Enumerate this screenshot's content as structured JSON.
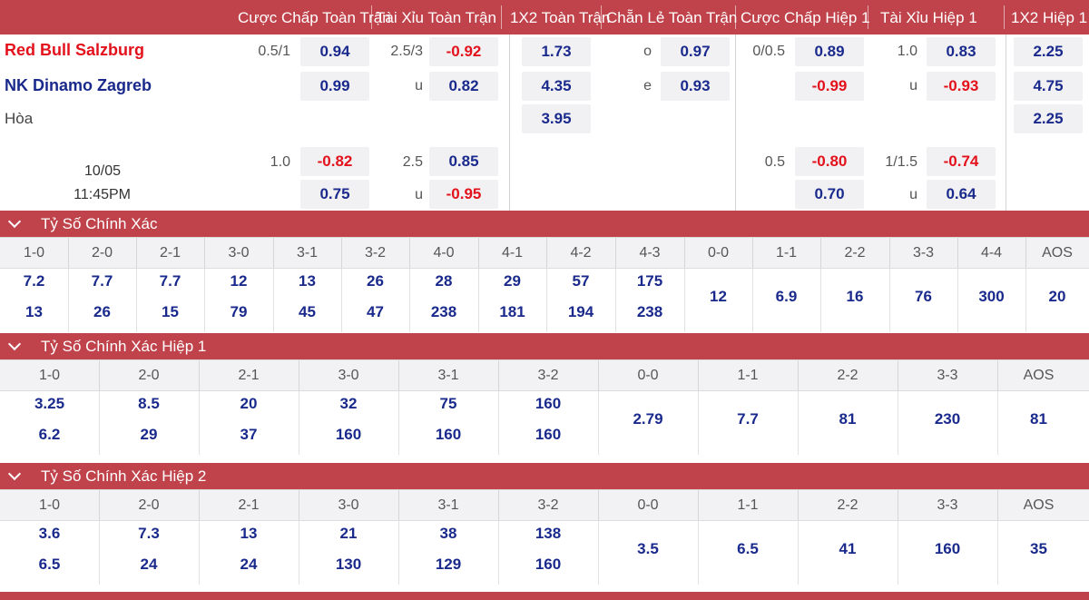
{
  "header": {
    "cols": [
      "Cược Chấp Toàn Trận",
      "Tài Xỉu Toàn Trận",
      "1X2 Toàn Trận",
      "Chẵn Lẻ Toàn Trận",
      "Cược Chấp Hiệp 1",
      "Tài Xỉu Hiệp 1",
      "1X2 Hiệp 1"
    ]
  },
  "match": {
    "home": "Red Bull Salzburg",
    "away": "NK Dinamo Zagreb",
    "draw": "Hòa",
    "date": "10/05",
    "time": "11:45PM",
    "colors": {
      "home": "#e3111b",
      "away": "#1a2a8c",
      "negative": "#e3111b",
      "positive": "#1a2a8c"
    }
  },
  "odds": {
    "hdp_line1": "0.5/1",
    "hdp_home": "0.94",
    "hdp_away": "0.99",
    "ou_line1": "2.5/3",
    "ou_over": "-0.92",
    "ou_u": "u",
    "ou_under": "0.82",
    "x12_home": "1.73",
    "x12_away": "4.35",
    "x12_draw": "3.95",
    "oe_o": "o",
    "oe_odd": "0.97",
    "oe_e": "e",
    "oe_even": "0.93",
    "h1_hdp_line": "0/0.5",
    "h1_hdp_home": "0.89",
    "h1_hdp_away": "-0.99",
    "h1_ou_line": "1.0",
    "h1_ou_over": "0.83",
    "h1_ou_u": "u",
    "h1_ou_under": "-0.93",
    "h1_x12_home": "2.25",
    "h1_x12_away": "4.75",
    "h1_x12_draw": "2.25",
    "hdp_line2": "1.0",
    "hdp2_home": "-0.82",
    "hdp2_away": "0.75",
    "ou_line2": "2.5",
    "ou2_over": "0.85",
    "ou2_u": "u",
    "ou2_under": "-0.95",
    "h1_hdp_line2": "0.5",
    "h1_hdp2_home": "-0.80",
    "h1_hdp2_away": "0.70",
    "h1_ou_line2": "1/1.5",
    "h1_ou2_over": "-0.74",
    "h1_ou2_u": "u",
    "h1_ou2_under": "0.64"
  },
  "correct_score": {
    "title": "Tỷ Số Chính Xác",
    "cols": [
      "1-0",
      "2-0",
      "2-1",
      "3-0",
      "3-1",
      "3-2",
      "4-0",
      "4-1",
      "4-2",
      "4-3",
      "0-0",
      "1-1",
      "2-2",
      "3-3",
      "4-4",
      "AOS"
    ],
    "home": [
      "7.2",
      "7.7",
      "7.7",
      "12",
      "13",
      "26",
      "28",
      "29",
      "57",
      "175"
    ],
    "away": [
      "13",
      "26",
      "15",
      "79",
      "45",
      "47",
      "238",
      "181",
      "194",
      "238"
    ],
    "single": [
      "12",
      "6.9",
      "16",
      "76",
      "300",
      "20"
    ]
  },
  "correct_score_h1": {
    "title": "Tỷ Số Chính Xác Hiệp 1",
    "cols": [
      "1-0",
      "2-0",
      "2-1",
      "3-0",
      "3-1",
      "3-2",
      "0-0",
      "1-1",
      "2-2",
      "3-3",
      "AOS"
    ],
    "home": [
      "3.25",
      "8.5",
      "20",
      "32",
      "75",
      "160"
    ],
    "away": [
      "6.2",
      "29",
      "37",
      "160",
      "160",
      "160"
    ],
    "single": [
      "2.79",
      "7.7",
      "81",
      "230",
      "81"
    ]
  },
  "correct_score_h2": {
    "title": "Tỷ Số Chính Xác Hiệp 2",
    "cols": [
      "1-0",
      "2-0",
      "2-1",
      "3-0",
      "3-1",
      "3-2",
      "0-0",
      "1-1",
      "2-2",
      "3-3",
      "AOS"
    ],
    "home": [
      "3.6",
      "7.3",
      "13",
      "21",
      "38",
      "138"
    ],
    "away": [
      "6.5",
      "24",
      "24",
      "130",
      "129",
      "160"
    ],
    "single": [
      "3.5",
      "6.5",
      "41",
      "160",
      "35"
    ]
  }
}
